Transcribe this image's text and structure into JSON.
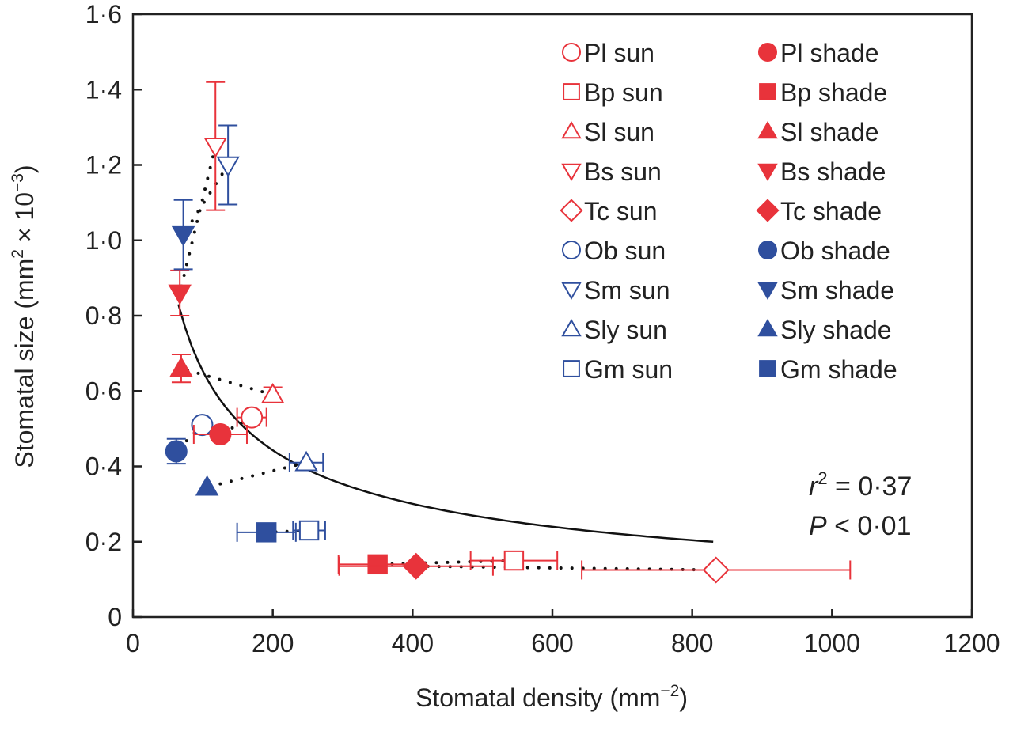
{
  "chart_data": {
    "type": "scatter",
    "xlabel": "Stomatal density (mm",
    "xlabel_sup": "−2",
    "xlabel_end": ")",
    "ylabel": "Stomatal size (mm",
    "ylabel_sup": "2",
    "ylabel_mid": " × 10",
    "ylabel_sup2": "−3",
    "ylabel_end": ")",
    "xlim": [
      0,
      1200
    ],
    "ylim": [
      0,
      1.6
    ],
    "xticks": [
      0,
      200,
      400,
      600,
      800,
      1000,
      1200
    ],
    "xtick_labels": [
      "0",
      "200",
      "400",
      "600",
      "800",
      "1000",
      "1200"
    ],
    "yticks": [
      0,
      0.2,
      0.4,
      0.6,
      0.8,
      1.0,
      1.2,
      1.4,
      1.6
    ],
    "ytick_labels": [
      "0",
      "0·2",
      "0·4",
      "0·6",
      "0·8",
      "1·0",
      "1·2",
      "1·4",
      "1·6"
    ],
    "grid": false,
    "legend_position": "top-right",
    "colors": {
      "red": "#e8333b",
      "blue": "#2f4f9e",
      "fit": "#111111"
    },
    "series": [
      {
        "name": "Pl sun",
        "marker": "circle",
        "filled": false,
        "color": "red",
        "x": 170,
        "y": 0.53,
        "xerr": 21,
        "yerr": 0
      },
      {
        "name": "Bp sun",
        "marker": "square",
        "filled": false,
        "color": "red",
        "x": 545,
        "y": 0.15,
        "xerr": 62,
        "yerr": 0
      },
      {
        "name": "Sl sun",
        "marker": "triangle-up",
        "filled": false,
        "color": "red",
        "x": 200,
        "y": 0.59,
        "xerr": 0,
        "yerr": 0.02
      },
      {
        "name": "Bs sun",
        "marker": "triangle-down",
        "filled": false,
        "color": "red",
        "x": 118,
        "y": 1.25,
        "xerr": 0,
        "yerr": 0.17
      },
      {
        "name": "Tc sun",
        "marker": "diamond",
        "filled": false,
        "color": "red",
        "x": 834,
        "y": 0.125,
        "xerr": 192,
        "yerr": 0
      },
      {
        "name": "Ob sun",
        "marker": "circle",
        "filled": false,
        "color": "blue",
        "x": 99,
        "y": 0.51,
        "xerr": 0,
        "yerr": 0
      },
      {
        "name": "Sm sun",
        "marker": "triangle-down",
        "filled": false,
        "color": "blue",
        "x": 136,
        "y": 1.2,
        "xerr": 0,
        "yerr": 0.105
      },
      {
        "name": "Sly sun",
        "marker": "triangle-up",
        "filled": false,
        "color": "blue",
        "x": 248,
        "y": 0.41,
        "xerr": 24,
        "yerr": 0
      },
      {
        "name": "Gm sun",
        "marker": "square",
        "filled": false,
        "color": "blue",
        "x": 252,
        "y": 0.23,
        "xerr": 23,
        "yerr": 0
      },
      {
        "name": "Pl shade",
        "marker": "circle",
        "filled": true,
        "color": "red",
        "x": 125,
        "y": 0.485,
        "xerr": 38,
        "yerr": 0
      },
      {
        "name": "Bp shade",
        "marker": "square",
        "filled": true,
        "color": "red",
        "x": 350,
        "y": 0.14,
        "xerr": 56,
        "yerr": 0
      },
      {
        "name": "Sl shade",
        "marker": "triangle-up",
        "filled": true,
        "color": "red",
        "x": 69,
        "y": 0.66,
        "xerr": 0,
        "yerr": 0.037
      },
      {
        "name": "Bs shade",
        "marker": "triangle-down",
        "filled": true,
        "color": "red",
        "x": 67,
        "y": 0.86,
        "xerr": 0,
        "yerr": 0.06
      },
      {
        "name": "Tc shade",
        "marker": "diamond",
        "filled": true,
        "color": "red",
        "x": 405,
        "y": 0.135,
        "xerr": 110,
        "yerr": 0
      },
      {
        "name": "Ob shade",
        "marker": "circle",
        "filled": true,
        "color": "blue",
        "x": 62,
        "y": 0.44,
        "xerr": 0,
        "yerr": 0.033
      },
      {
        "name": "Sm shade",
        "marker": "triangle-down",
        "filled": true,
        "color": "blue",
        "x": 72,
        "y": 1.015,
        "xerr": 0,
        "yerr": 0.092
      },
      {
        "name": "Sly shade",
        "marker": "triangle-up",
        "filled": true,
        "color": "blue",
        "x": 106,
        "y": 0.345,
        "xerr": 0,
        "yerr": 0
      },
      {
        "name": "Gm shade",
        "marker": "square",
        "filled": true,
        "color": "blue",
        "x": 191,
        "y": 0.225,
        "xerr": 42,
        "yerr": 0
      }
    ],
    "pairs": [
      [
        "Pl sun",
        "Pl shade"
      ],
      [
        "Bp sun",
        "Bp shade"
      ],
      [
        "Sl sun",
        "Sl shade"
      ],
      [
        "Bs sun",
        "Bs shade"
      ],
      [
        "Tc sun",
        "Tc shade"
      ],
      [
        "Ob sun",
        "Ob shade"
      ],
      [
        "Sm sun",
        "Sm shade"
      ],
      [
        "Sly sun",
        "Sly shade"
      ],
      [
        "Gm sun",
        "Gm shade"
      ]
    ],
    "fit": {
      "model": "power",
      "a": 8.56,
      "b": -0.559,
      "x_range": [
        65,
        830
      ]
    },
    "annotations": {
      "r2_label": "r",
      "r2_sup": "2",
      "r2_value": " = 0·37",
      "p_label": "P",
      "p_value": " < 0·01"
    }
  }
}
